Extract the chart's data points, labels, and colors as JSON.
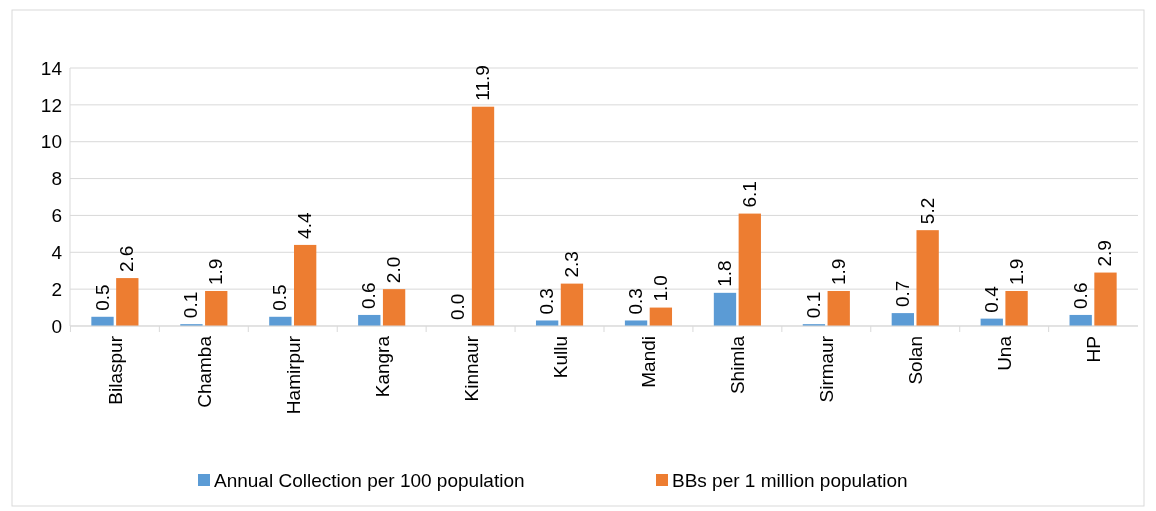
{
  "chart_data": {
    "type": "bar",
    "categories": [
      "Bilaspur",
      "Chamba",
      "Hamirpur",
      "Kangra",
      "Kinnaur",
      "Kullu",
      "Mandi",
      "Shimla",
      "Sirmaur",
      "Solan",
      "Una",
      "HP"
    ],
    "series": [
      {
        "name": "Annual Collection per 100 population",
        "color": "#5b9bd5",
        "values": [
          0.5,
          0.1,
          0.5,
          0.6,
          0.0,
          0.3,
          0.3,
          1.8,
          0.1,
          0.7,
          0.4,
          0.6
        ],
        "value_labels": [
          "0.5",
          "0.1",
          "0.5",
          "0.6",
          "0.0",
          "0.3",
          "0.3",
          "1.8",
          "0.1",
          "0.7",
          "0.4",
          "0.6"
        ]
      },
      {
        "name": "BBs per 1 million population",
        "color": "#ed7d31",
        "values": [
          2.6,
          1.9,
          4.4,
          2.0,
          11.9,
          2.3,
          1.0,
          6.1,
          1.9,
          5.2,
          1.9,
          2.9
        ],
        "value_labels": [
          "2.6",
          "1.9",
          "4.4",
          "2.0",
          "11.9",
          "2.3",
          "1.0",
          "6.1",
          "1.9",
          "5.2",
          "1.9",
          "2.9"
        ]
      }
    ],
    "ylim": [
      0,
      14
    ],
    "yticks": [
      0,
      2,
      4,
      6,
      8,
      10,
      12,
      14
    ],
    "grid": "y",
    "legend": "bottom"
  }
}
